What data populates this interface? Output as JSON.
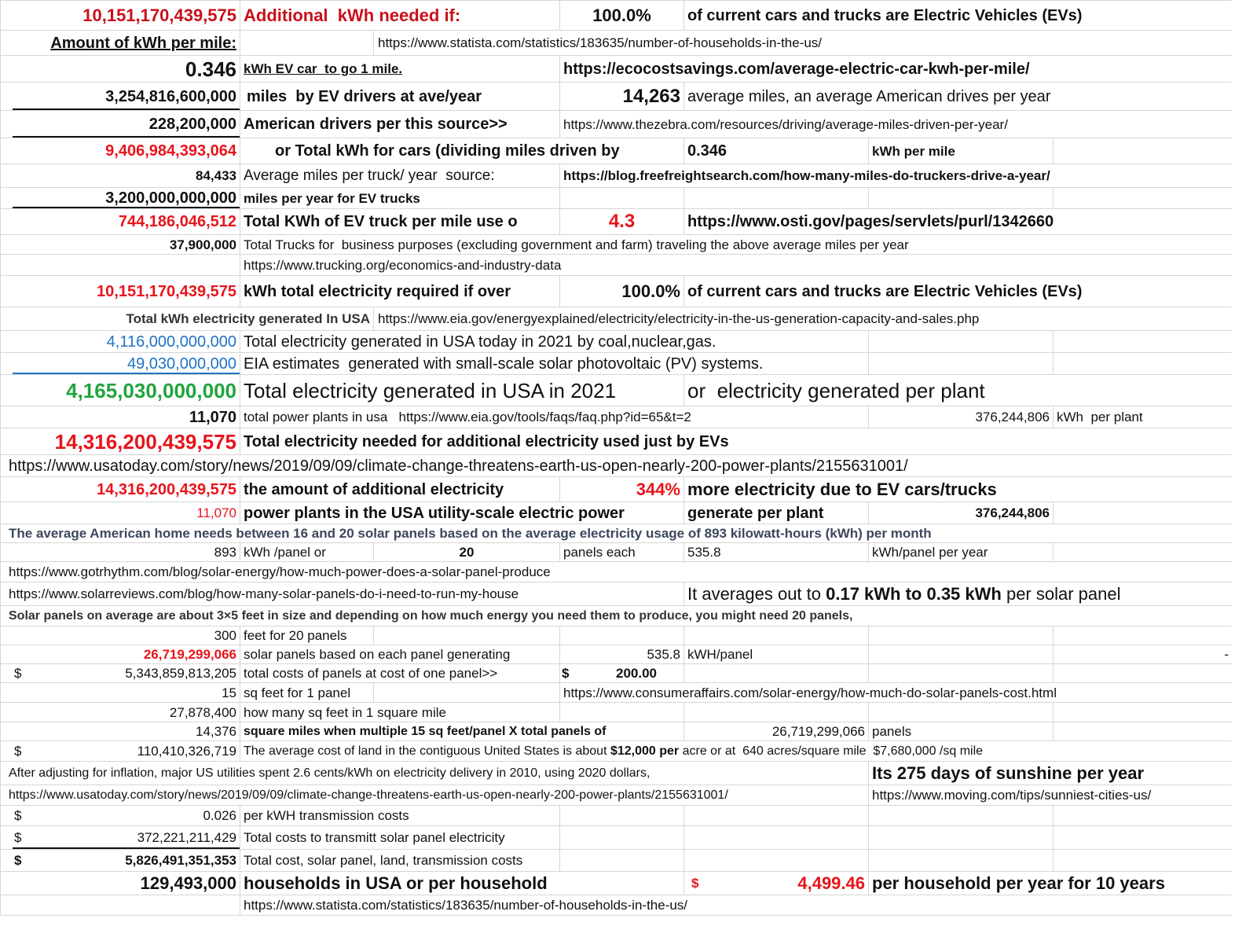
{
  "colors": {
    "red": "#e8141b",
    "dark_red": "#c8101a",
    "blue": "#1f73c4",
    "green": "#1fa53c",
    "grid": "#d6d6d6"
  },
  "rows": [
    [
      "10,151,170,439,575",
      "Additional  kWh needed if:",
      "100.0%",
      "of current cars and trucks are Electric Vehicles (EVs)"
    ],
    [
      "Amount of kWh per mile:",
      "https://www.statista.com/statistics/183635/number-of-households-in-the-us/"
    ],
    [
      "0.346",
      "kWh EV car  to go 1 mile.",
      "https://ecocostsavings.com/average-electric-car-kwh-per-mile/"
    ],
    [
      "3,254,816,600,000",
      "miles  by EV drivers at ave/year",
      "14,263",
      "average miles, an average American drives per year"
    ],
    [
      "228,200,000",
      "American drivers per this source>>",
      "https://www.thezebra.com/resources/driving/average-miles-driven-per-year/"
    ],
    [
      "9,406,984,393,064",
      "or Total kWh for cars (dividing miles driven by",
      "0.346",
      "kWh per mile"
    ],
    [
      "84,433",
      "Average miles per truck/ year  source:",
      "https://blog.freefreightsearch.com/how-many-miles-do-truckers-drive-a-year/"
    ],
    [
      "3,200,000,000,000",
      "miles per year for EV trucks"
    ],
    [
      "744,186,046,512",
      "Total KWh of EV truck per mile use o",
      "4.3",
      "https://www.osti.gov/pages/servlets/purl/1342660"
    ],
    [
      "37,900,000",
      "Total Trucks for  business purposes (excluding government and farm) traveling the above average miles per year"
    ],
    [
      "https://www.trucking.org/economics-and-industry-data"
    ],
    [
      "10,151,170,439,575",
      "kWh total electricity required if over",
      "100.0%",
      "of current cars and trucks are Electric Vehicles (EVs)"
    ],
    [
      "Total kWh electricity generated In USA",
      "https://www.eia.gov/energyexplained/electricity/electricity-in-the-us-generation-capacity-and-sales.php"
    ],
    [
      "4,116,000,000,000",
      "Total electricity generated in USA today in 2021 by coal,nuclear,gas."
    ],
    [
      "49,030,000,000",
      "EIA estimates  generated with small-scale solar photovoltaic (PV) systems."
    ],
    [
      "4,165,030,000,000",
      "Total electricity generated in USA in 2021",
      "or  electricity generated per plant"
    ],
    [
      "11,070",
      "total power plants in usa   https://www.eia.gov/tools/faqs/faq.php?id=65&t=2",
      "376,244,806",
      "kWh  per plant"
    ],
    [
      "14,316,200,439,575",
      "Total electricity needed for additional electricity used just by EVs"
    ],
    [
      "https://www.usatoday.com/story/news/2019/09/09/climate-change-threatens-earth-us-open-nearly-200-power-plants/2155631001/"
    ],
    [
      "14,316,200,439,575",
      "the amount of additional electricity",
      "344%",
      "more electricity due to EV cars/trucks"
    ],
    [
      "11,070",
      "power plants in the USA utility-scale electric power",
      "generate per plant",
      "376,244,806"
    ],
    [
      "The average American home needs between 16 and 20 solar panels based on the average electricity usage of 893 kilowatt-hours (kWh) per month"
    ],
    [
      "893",
      "kWh /panel or",
      "20",
      "panels each",
      "535.8",
      "kWh/panel per year"
    ],
    [
      "https://www.gotrhythm.com/blog/solar-energy/how-much-power-does-a-solar-panel-produce"
    ],
    [
      "https://www.solarreviews.com/blog/how-many-solar-panels-do-i-need-to-run-my-house",
      [
        "It averages out to ",
        "0.17 kWh to 0.35 kWh",
        " per solar panel"
      ]
    ],
    [
      "Solar panels on average are about 3×5 feet in size and depending on how much energy you need them to produce, you might need 20 panels,"
    ],
    [
      "300",
      "feet for 20 panels"
    ],
    [
      "26,719,299,066",
      "solar panels based on each panel generating",
      "535.8",
      "kWH/panel",
      "-"
    ],
    [
      "$",
      "5,343,859,813,205",
      "total costs of panels at cost of one panel>>",
      "$",
      "200.00"
    ],
    [
      "15",
      "sq feet for 1 panel",
      "https://www.consumeraffairs.com/solar-energy/how-much-do-solar-panels-cost.html"
    ],
    [
      "27,878,400",
      "how many sq feet in 1 square mile"
    ],
    [
      "14,376",
      "square miles when multiple 15 sq feet/panel X total panels of",
      "26,719,299,066",
      "panels"
    ],
    [
      "$",
      "110,410,326,719",
      [
        "The average cost of land in the contiguous United States is about ",
        "$12,000 per",
        " acre or at  640 acres/square mile  $7,680,000 /sq mile"
      ]
    ],
    [
      "After adjusting for inflation, major US utilities spent 2.6 cents/kWh on electricity delivery in 2010, using 2020 dollars,",
      [
        "Its ",
        "275 days of sunshine per year"
      ]
    ],
    [
      "https://www.usatoday.com/story/news/2019/09/09/climate-change-threatens-earth-us-open-nearly-200-power-plants/2155631001/",
      "https://www.moving.com/tips/sunniest-cities-us/"
    ],
    [
      "$",
      "0.026",
      "per kWH transmission costs"
    ],
    [
      "$",
      "372,221,211,429",
      "Total costs to transmitt solar panel electricity"
    ],
    [
      "$",
      "5,826,491,351,353",
      "Total cost, solar panel, land, transmission costs"
    ],
    [
      "129,493,000",
      "households in USA or per household",
      "$",
      "4,499.46",
      "per household per year for 10 years"
    ],
    [
      "https://www.statista.com/statistics/183635/number-of-households-in-the-us/"
    ]
  ]
}
